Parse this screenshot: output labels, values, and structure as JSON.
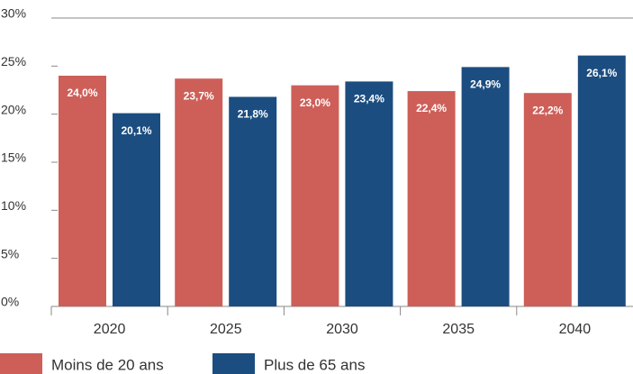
{
  "chart_data": {
    "type": "bar",
    "categories": [
      "2020",
      "2025",
      "2030",
      "2035",
      "2040"
    ],
    "series": [
      {
        "name": "Moins de 20 ans",
        "color": "#cd5f58",
        "values": [
          24.0,
          23.7,
          23.0,
          22.4,
          22.2
        ],
        "value_labels": [
          "24,0%",
          "23,7%",
          "23,0%",
          "22,4%",
          "22,2%"
        ]
      },
      {
        "name": "Plus de 65 ans",
        "color": "#1b4d80",
        "values": [
          20.1,
          21.8,
          23.4,
          24.9,
          26.1
        ],
        "value_labels": [
          "20,1%",
          "21,8%",
          "23,4%",
          "24,9%",
          "26,1%"
        ]
      }
    ],
    "ylim": [
      0,
      30
    ],
    "yticks": [
      {
        "value": 0,
        "label": "0%"
      },
      {
        "value": 5,
        "label": "5%"
      },
      {
        "value": 10,
        "label": "10%"
      },
      {
        "value": 15,
        "label": "15%"
      },
      {
        "value": 20,
        "label": "20%"
      },
      {
        "value": 25,
        "label": "25%"
      },
      {
        "value": 30,
        "label": "30%"
      }
    ],
    "legend": "bottom-left"
  }
}
